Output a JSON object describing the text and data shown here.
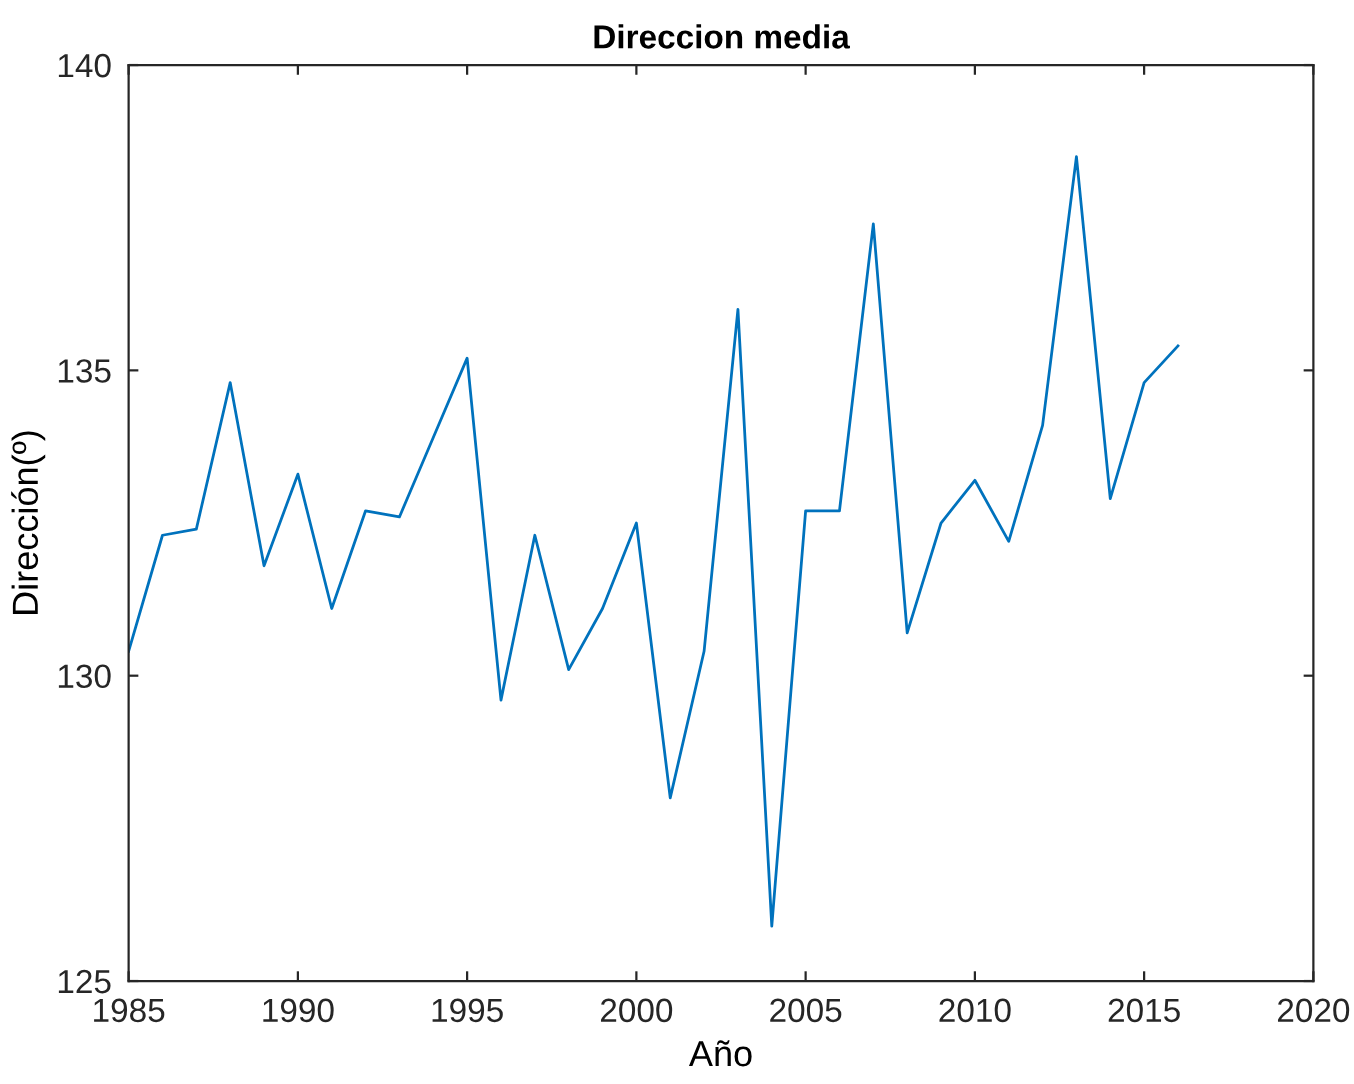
{
  "chart_data": {
    "type": "line",
    "title": "Direccion media",
    "xlabel": "Año",
    "ylabel": "Dirección(º)",
    "x": [
      1985,
      1986,
      1987,
      1988,
      1989,
      1990,
      1991,
      1992,
      1993,
      1994,
      1995,
      1996,
      1997,
      1998,
      1999,
      2000,
      2001,
      2002,
      2003,
      2004,
      2005,
      2006,
      2007,
      2008,
      2009,
      2010,
      2011,
      2012,
      2013,
      2014,
      2015,
      2016
    ],
    "series": [
      {
        "color": "#0072bd",
        "values": [
          130.4,
          132.3,
          132.4,
          134.8,
          131.8,
          133.3,
          131.1,
          132.7,
          132.6,
          133.9,
          135.2,
          129.6,
          132.3,
          130.1,
          131.1,
          132.5,
          128.0,
          130.4,
          136.0,
          125.9,
          132.7,
          132.7,
          137.4,
          130.7,
          132.5,
          133.2,
          132.2,
          134.1,
          138.5,
          132.9,
          134.8,
          135.4
        ]
      }
    ],
    "xlim": [
      1985,
      2020
    ],
    "xticks": [
      1985,
      1990,
      1995,
      2000,
      2005,
      2010,
      2015,
      2020
    ],
    "ylim": [
      125,
      140
    ],
    "yticks": [
      125,
      130,
      135,
      140
    ],
    "grid": false,
    "legend": false
  }
}
